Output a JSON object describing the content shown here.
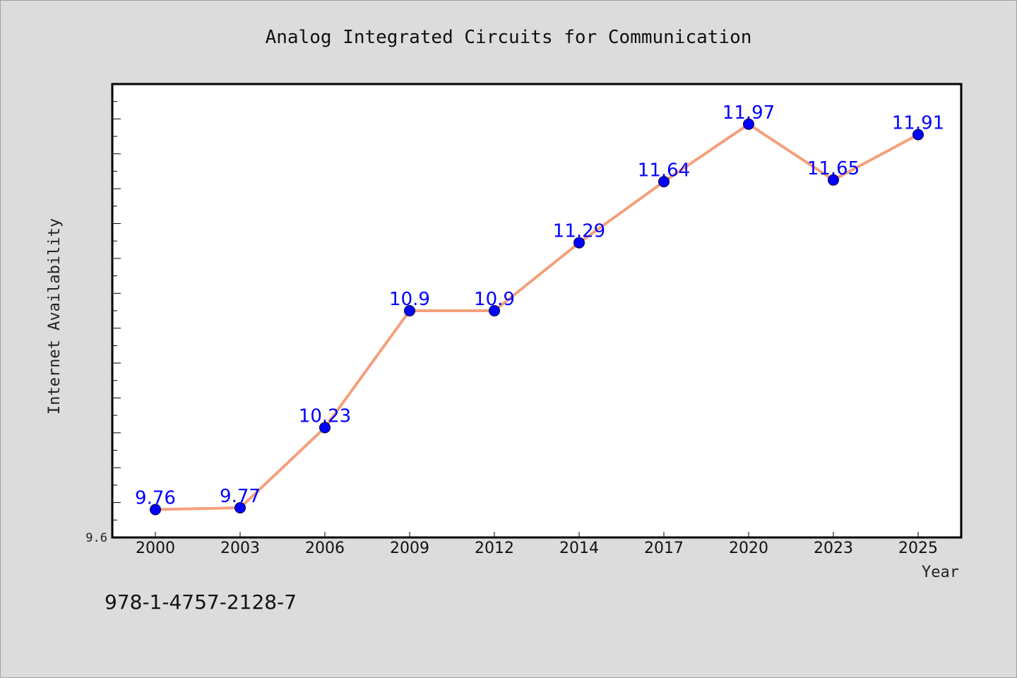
{
  "chart_data": {
    "type": "line",
    "title": "Analog Integrated Circuits for Communication",
    "xlabel": "Year",
    "ylabel": "Internet Availability",
    "categories": [
      "2000",
      "2003",
      "2006",
      "2009",
      "2012",
      "2014",
      "2017",
      "2020",
      "2023",
      "2025"
    ],
    "values": [
      9.76,
      9.77,
      10.23,
      10.9,
      10.9,
      11.29,
      11.64,
      11.97,
      11.65,
      11.91
    ],
    "data_labels": [
      "9.76",
      "9.77",
      "10.23",
      "10.9",
      "10.9",
      "11.29",
      "11.64",
      "11.97",
      "11.65",
      "11.91"
    ],
    "y_tick_labels": [
      "9.6"
    ],
    "ylim": [
      9.6,
      12.2
    ],
    "grid": false,
    "legend": "none",
    "line_color": "#f4a07c",
    "marker_color": "#0000ff",
    "label_color": "#0000ff",
    "background_color": "#dcdcdc",
    "plot_background": "#ffffff"
  },
  "footer": {
    "isbn": "978-1-4757-2128-7"
  }
}
